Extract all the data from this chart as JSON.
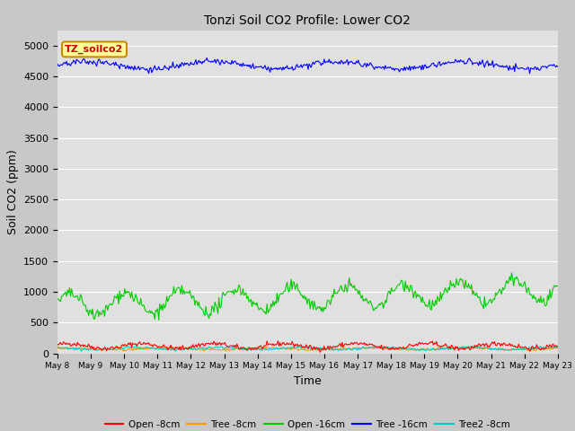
{
  "title": "Tonzi Soil CO2 Profile: Lower CO2",
  "xlabel": "Time",
  "ylabel": "Soil CO2 (ppm)",
  "ylim": [
    0,
    5250
  ],
  "yticks": [
    0,
    500,
    1000,
    1500,
    2000,
    2500,
    3000,
    3500,
    4000,
    4500,
    5000
  ],
  "background_color": "#c8c8c8",
  "plot_bg_color": "#e0e0e0",
  "legend_label": "TZ_soilco2",
  "legend_box_color": "#ffff99",
  "legend_box_edge": "#cc8800",
  "series": {
    "open_8cm": {
      "label": "Open -8cm",
      "color": "#ff0000"
    },
    "tree_8cm": {
      "label": "Tree -8cm",
      "color": "#ff9900"
    },
    "open_16cm": {
      "label": "Open -16cm",
      "color": "#00cc00"
    },
    "tree_16cm": {
      "label": "Tree -16cm",
      "color": "#0000ff"
    },
    "tree2_8cm": {
      "label": "Tree2 -8cm",
      "color": "#00cccc"
    }
  },
  "n_days": 15,
  "start_day": 8,
  "n_points": 500
}
